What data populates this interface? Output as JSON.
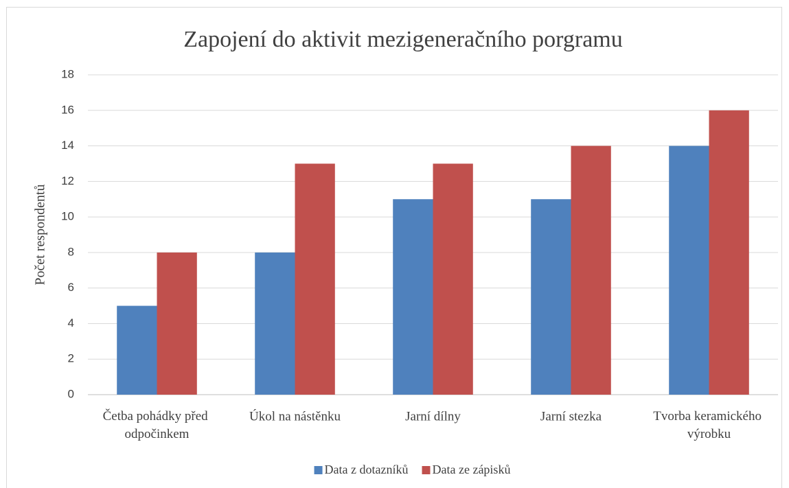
{
  "chart_data": {
    "type": "bar",
    "title": "Zapojení do aktivit mezigeneračního porgramu",
    "y_label": "Počet respondentů",
    "categories": [
      "Četba pohádky před odpočinkem",
      "Úkol na nástěnku",
      "Jarní dílny",
      "Jarní stezka",
      "Tvorba keramického výrobku"
    ],
    "series": [
      {
        "name": "Data z dotazníků",
        "color": "#4f81bd",
        "values": [
          5,
          8,
          11,
          11,
          14
        ]
      },
      {
        "name": "Data ze zápisků",
        "color": "#c0504d",
        "values": [
          8,
          13,
          13,
          14,
          16
        ]
      }
    ],
    "ylim": [
      0,
      18
    ],
    "yticks": [
      0,
      2,
      4,
      6,
      8,
      10,
      12,
      14,
      16,
      18
    ],
    "grid": true,
    "legend": "bottom"
  }
}
